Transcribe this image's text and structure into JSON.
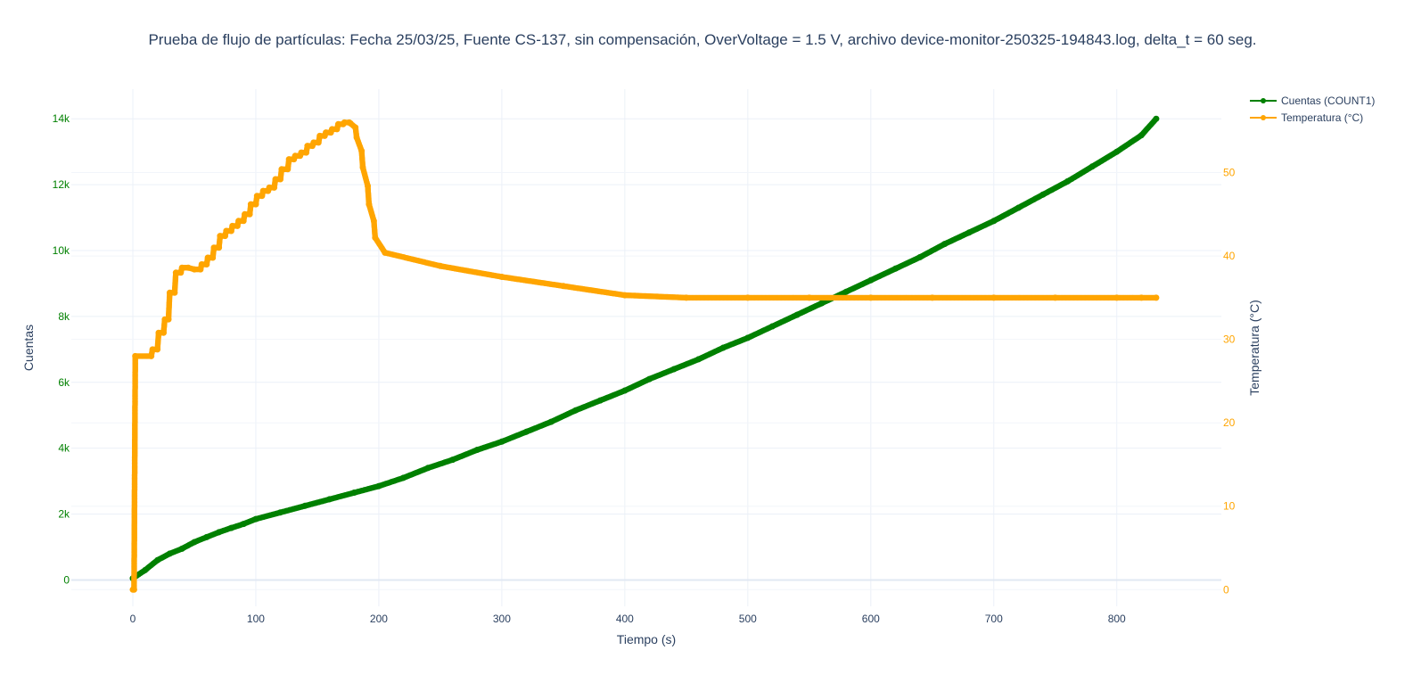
{
  "chart_data": {
    "type": "line",
    "title": "Prueba de flujo de partículas: Fecha 25/03/25, Fuente CS-137, sin compensación, OverVoltage = 1.5 V, archivo device-monitor-250325-194843.log, delta_t = 60 seg.",
    "xlabel": "Tiempo (s)",
    "ylabel": "Cuentas",
    "y2label": "Temperatura (°C)",
    "xlim": [
      -50,
      885
    ],
    "ylim": [
      -800,
      14900
    ],
    "y2lim": [
      -2,
      60
    ],
    "x_ticks": [
      0,
      100,
      200,
      300,
      400,
      500,
      600,
      700,
      800
    ],
    "x_tick_labels": [
      "0",
      "100",
      "200",
      "300",
      "400",
      "500",
      "600",
      "700",
      "800"
    ],
    "y_ticks": [
      0,
      2000,
      4000,
      6000,
      8000,
      10000,
      12000,
      14000
    ],
    "y_tick_labels": [
      "0",
      "2k",
      "4k",
      "6k",
      "8k",
      "10k",
      "12k",
      "14k"
    ],
    "y2_ticks": [
      0,
      10,
      20,
      30,
      40,
      50
    ],
    "y2_tick_labels": [
      "0",
      "10",
      "20",
      "30",
      "40",
      "50"
    ],
    "grid": true,
    "legend_position": "top-right",
    "series": [
      {
        "name": "Cuentas (COUNT1)",
        "color": "#008000",
        "axis": "left",
        "x": [
          0,
          10,
          20,
          30,
          40,
          50,
          60,
          70,
          80,
          90,
          100,
          120,
          140,
          160,
          180,
          200,
          220,
          240,
          260,
          280,
          300,
          320,
          340,
          360,
          380,
          400,
          420,
          440,
          460,
          480,
          500,
          520,
          540,
          560,
          580,
          600,
          620,
          640,
          660,
          680,
          700,
          720,
          740,
          760,
          780,
          800,
          820,
          832
        ],
        "values": [
          50,
          300,
          600,
          800,
          950,
          1150,
          1300,
          1450,
          1580,
          1700,
          1850,
          2050,
          2250,
          2450,
          2650,
          2850,
          3100,
          3400,
          3650,
          3950,
          4200,
          4500,
          4800,
          5150,
          5450,
          5750,
          6100,
          6400,
          6700,
          7050,
          7350,
          7700,
          8050,
          8400,
          8750,
          9100,
          9450,
          9800,
          10200,
          10550,
          10900,
          11300,
          11700,
          12100,
          12550,
          13000,
          13500,
          14000
        ]
      },
      {
        "name": "Temperatura (°C)",
        "color": "#ffa500",
        "axis": "right",
        "x": [
          0,
          1,
          2,
          15,
          16,
          20,
          21,
          25,
          26,
          29,
          30,
          34,
          35,
          39,
          40,
          45,
          50,
          55,
          56,
          60,
          61,
          65,
          66,
          70,
          71,
          75,
          76,
          80,
          81,
          85,
          86,
          90,
          91,
          95,
          96,
          100,
          101,
          105,
          106,
          110,
          111,
          115,
          116,
          120,
          121,
          126,
          127,
          131,
          132,
          136,
          137,
          141,
          142,
          146,
          147,
          151,
          152,
          156,
          157,
          161,
          162,
          166,
          167,
          171,
          172,
          176,
          177,
          181,
          182,
          186,
          187,
          191,
          192,
          196,
          197,
          205,
          250,
          300,
          350,
          400,
          450,
          500,
          550,
          600,
          650,
          700,
          750,
          800,
          820,
          832
        ],
        "values": [
          0,
          0,
          28,
          28,
          28.8,
          28.8,
          30.8,
          30.8,
          32.4,
          32.4,
          35.6,
          35.6,
          38,
          38,
          38.6,
          38.6,
          38.4,
          38.4,
          39,
          39,
          39.8,
          39.8,
          41,
          41,
          42.4,
          42.4,
          43,
          43,
          43.6,
          43.6,
          44.2,
          44.2,
          45,
          45,
          46.2,
          46.2,
          47.2,
          47.2,
          47.8,
          47.8,
          48.2,
          48.2,
          49.2,
          49.2,
          50.4,
          50.4,
          51.6,
          51.6,
          52,
          52,
          52.4,
          52.4,
          53.2,
          53.2,
          53.6,
          53.6,
          54.4,
          54.4,
          54.8,
          54.8,
          55.2,
          55.2,
          55.8,
          55.8,
          56,
          56,
          55.9,
          55.4,
          54.2,
          52.6,
          50.6,
          48.4,
          46.2,
          44.2,
          42.2,
          40.4,
          38.8,
          37.5,
          36.4,
          35.3,
          35,
          35,
          35,
          35,
          35,
          35,
          35,
          35,
          35,
          35
        ]
      }
    ]
  }
}
